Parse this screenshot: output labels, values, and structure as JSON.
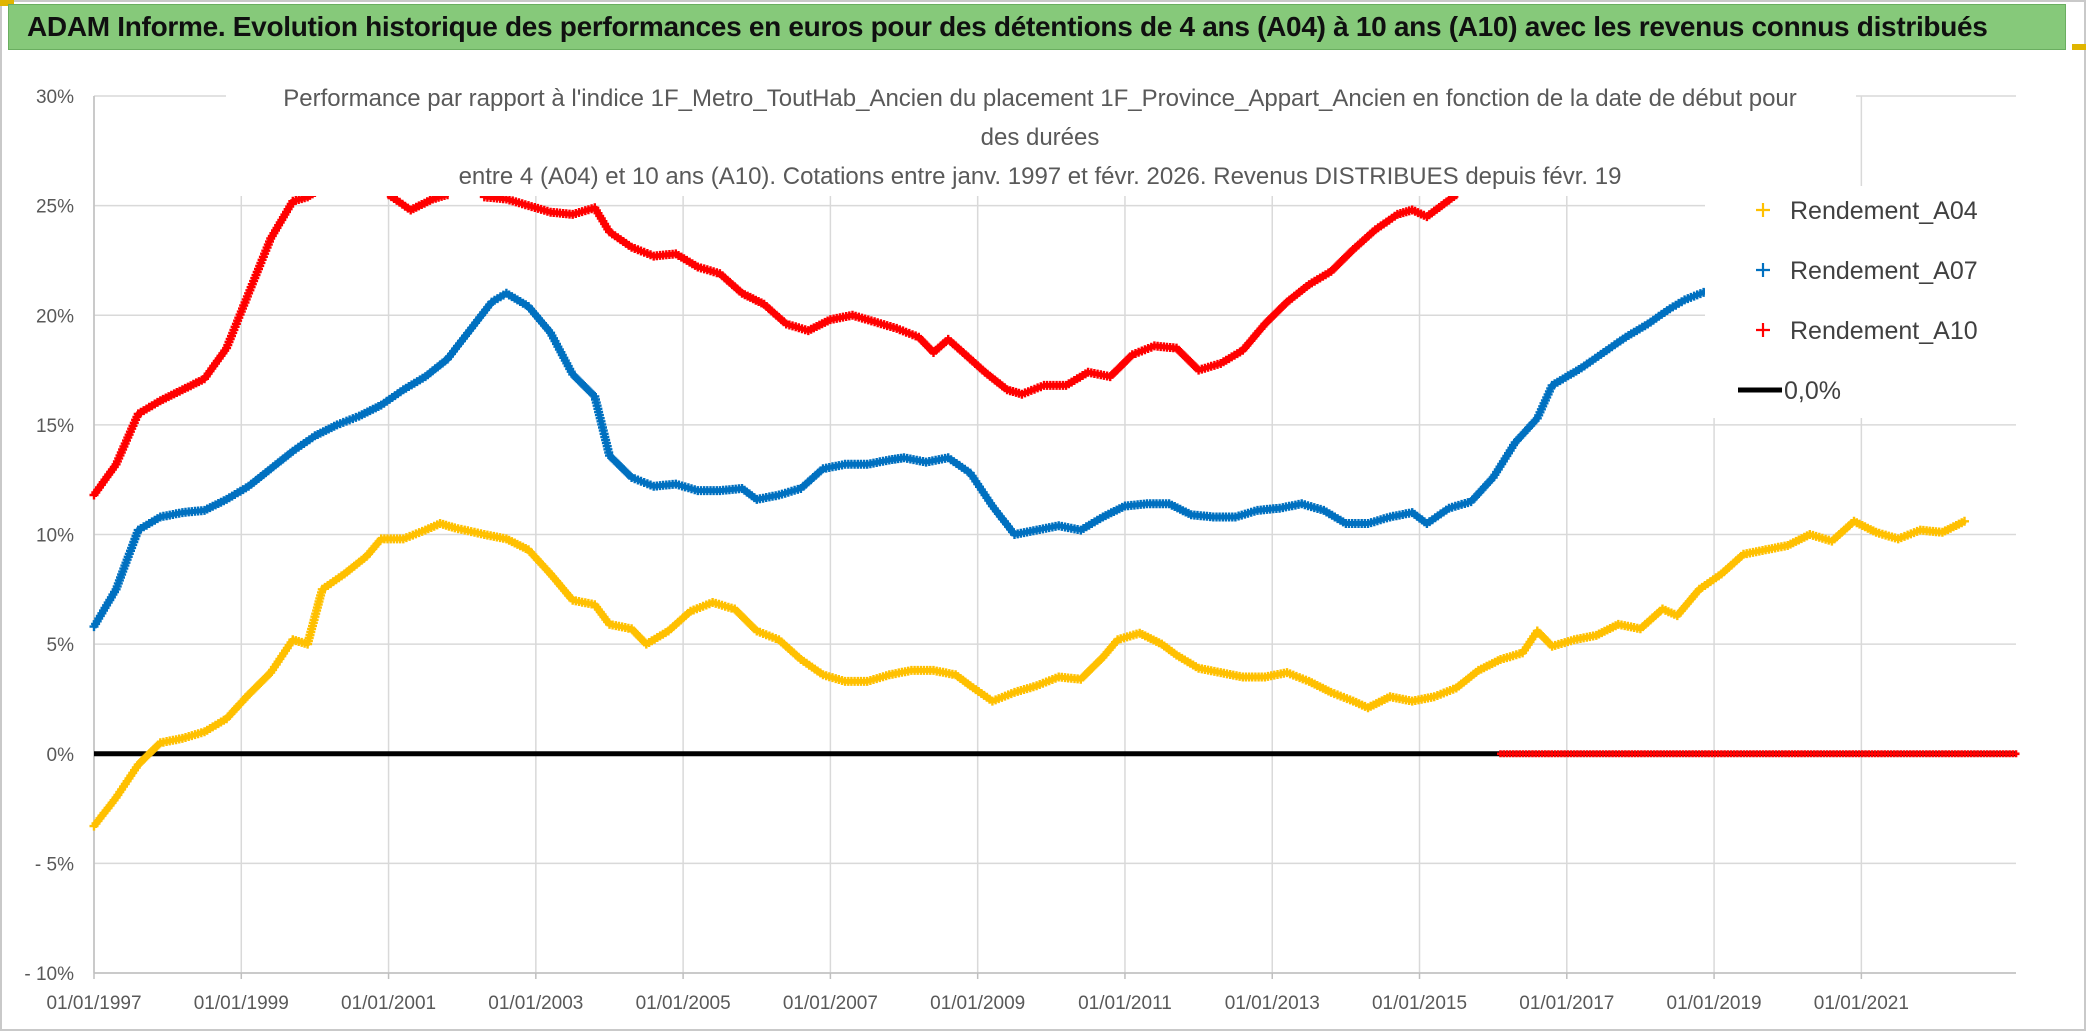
{
  "header": {
    "title": "ADAM Informe. Evolution historique des performances en euros pour des détentions de 4 ans (A04) à 10 ans (A10) avec les revenus connus distribués"
  },
  "chart_data": {
    "type": "line",
    "title_lines": [
      "Performance par rapport à l'indice 1F_Metro_ToutHab_Ancien  du placement 1F_Province_Appart_Ancien en fonction de la date de début pour",
      "des durées",
      "entre 4 (A04) et 10 ans (A10). Cotations entre janv. 1997 et févr. 2026. Revenus DISTRIBUES depuis févr. 19"
    ],
    "y_ticks": [
      "30%",
      "25%",
      "20%",
      "15%",
      "10%",
      "5%",
      "0%",
      "- 5%",
      "- 10%"
    ],
    "ylim": [
      -10,
      30
    ],
    "x_ticks": [
      {
        "label": "01/01/1997",
        "year": 1997
      },
      {
        "label": "01/01/1999",
        "year": 1999
      },
      {
        "label": "01/01/2001",
        "year": 2001
      },
      {
        "label": "01/01/2003",
        "year": 2003
      },
      {
        "label": "01/01/2005",
        "year": 2005
      },
      {
        "label": "01/01/2007",
        "year": 2007
      },
      {
        "label": "01/01/2009",
        "year": 2009
      },
      {
        "label": "01/01/2011",
        "year": 2011
      },
      {
        "label": "01/01/2013",
        "year": 2013
      },
      {
        "label": "01/01/2015",
        "year": 2015
      },
      {
        "label": "01/01/2017",
        "year": 2017
      },
      {
        "label": "01/01/2019",
        "year": 2019
      },
      {
        "label": "01/01/2021",
        "year": 2021
      }
    ],
    "xlim": [
      1997,
      2023.1
    ],
    "grid": true,
    "legend_position": "right",
    "series": [
      {
        "name": "Rendement_A04",
        "color": "#ffc000",
        "points": [
          [
            1997.0,
            -3.3
          ],
          [
            1997.3,
            -2.0
          ],
          [
            1997.6,
            -0.5
          ],
          [
            1997.9,
            0.5
          ],
          [
            1998.2,
            0.7
          ],
          [
            1998.5,
            1.0
          ],
          [
            1998.8,
            1.6
          ],
          [
            1999.1,
            2.7
          ],
          [
            1999.4,
            3.7
          ],
          [
            1999.7,
            5.2
          ],
          [
            1999.9,
            5.0
          ],
          [
            2000.1,
            7.5
          ],
          [
            2000.4,
            8.2
          ],
          [
            2000.7,
            9.0
          ],
          [
            2000.9,
            9.8
          ],
          [
            2001.2,
            9.8
          ],
          [
            2001.5,
            10.2
          ],
          [
            2001.7,
            10.5
          ],
          [
            2001.9,
            10.3
          ],
          [
            2002.3,
            10.0
          ],
          [
            2002.6,
            9.8
          ],
          [
            2002.9,
            9.3
          ],
          [
            2003.2,
            8.2
          ],
          [
            2003.5,
            7.0
          ],
          [
            2003.8,
            6.8
          ],
          [
            2004.0,
            5.9
          ],
          [
            2004.3,
            5.7
          ],
          [
            2004.5,
            5.0
          ],
          [
            2004.8,
            5.6
          ],
          [
            2005.1,
            6.5
          ],
          [
            2005.4,
            6.9
          ],
          [
            2005.7,
            6.6
          ],
          [
            2006.0,
            5.6
          ],
          [
            2006.3,
            5.2
          ],
          [
            2006.6,
            4.3
          ],
          [
            2006.9,
            3.6
          ],
          [
            2007.2,
            3.3
          ],
          [
            2007.5,
            3.3
          ],
          [
            2007.8,
            3.6
          ],
          [
            2008.1,
            3.8
          ],
          [
            2008.4,
            3.8
          ],
          [
            2008.7,
            3.6
          ],
          [
            2008.9,
            3.1
          ],
          [
            2009.2,
            2.4
          ],
          [
            2009.5,
            2.8
          ],
          [
            2009.8,
            3.1
          ],
          [
            2010.1,
            3.5
          ],
          [
            2010.4,
            3.4
          ],
          [
            2010.7,
            4.4
          ],
          [
            2010.9,
            5.2
          ],
          [
            2011.2,
            5.5
          ],
          [
            2011.5,
            5.0
          ],
          [
            2011.7,
            4.5
          ],
          [
            2012.0,
            3.9
          ],
          [
            2012.3,
            3.7
          ],
          [
            2012.6,
            3.5
          ],
          [
            2012.9,
            3.5
          ],
          [
            2013.2,
            3.7
          ],
          [
            2013.5,
            3.3
          ],
          [
            2013.8,
            2.8
          ],
          [
            2014.1,
            2.4
          ],
          [
            2014.3,
            2.1
          ],
          [
            2014.6,
            2.6
          ],
          [
            2014.9,
            2.4
          ],
          [
            2015.2,
            2.6
          ],
          [
            2015.5,
            3.0
          ],
          [
            2015.8,
            3.8
          ],
          [
            2016.1,
            4.3
          ],
          [
            2016.4,
            4.6
          ],
          [
            2016.6,
            5.6
          ],
          [
            2016.8,
            4.9
          ],
          [
            2017.1,
            5.2
          ],
          [
            2017.4,
            5.4
          ],
          [
            2017.7,
            5.9
          ],
          [
            2018.0,
            5.7
          ],
          [
            2018.3,
            6.6
          ],
          [
            2018.5,
            6.3
          ],
          [
            2018.8,
            7.5
          ],
          [
            2019.1,
            8.2
          ],
          [
            2019.4,
            9.1
          ],
          [
            2019.7,
            9.3
          ],
          [
            2020.0,
            9.5
          ],
          [
            2020.3,
            10.0
          ],
          [
            2020.6,
            9.7
          ],
          [
            2020.9,
            10.6
          ],
          [
            2021.2,
            10.1
          ],
          [
            2021.5,
            9.8
          ],
          [
            2021.8,
            10.2
          ],
          [
            2022.1,
            10.1
          ],
          [
            2022.4,
            10.6
          ]
        ]
      },
      {
        "name": "Rendement_A07",
        "color": "#0070c0",
        "points": [
          [
            1997.0,
            5.8
          ],
          [
            1997.3,
            7.5
          ],
          [
            1997.6,
            10.2
          ],
          [
            1997.9,
            10.8
          ],
          [
            1998.2,
            11.0
          ],
          [
            1998.5,
            11.1
          ],
          [
            1998.8,
            11.6
          ],
          [
            1999.1,
            12.2
          ],
          [
            1999.4,
            13.0
          ],
          [
            1999.7,
            13.8
          ],
          [
            2000.0,
            14.5
          ],
          [
            2000.3,
            15.0
          ],
          [
            2000.6,
            15.4
          ],
          [
            2000.9,
            15.9
          ],
          [
            2001.2,
            16.6
          ],
          [
            2001.5,
            17.2
          ],
          [
            2001.8,
            18.0
          ],
          [
            2002.1,
            19.3
          ],
          [
            2002.4,
            20.6
          ],
          [
            2002.6,
            21.0
          ],
          [
            2002.9,
            20.4
          ],
          [
            2003.2,
            19.2
          ],
          [
            2003.5,
            17.3
          ],
          [
            2003.8,
            16.3
          ],
          [
            2004.0,
            13.6
          ],
          [
            2004.3,
            12.6
          ],
          [
            2004.6,
            12.2
          ],
          [
            2004.9,
            12.3
          ],
          [
            2005.2,
            12.0
          ],
          [
            2005.5,
            12.0
          ],
          [
            2005.8,
            12.1
          ],
          [
            2006.0,
            11.6
          ],
          [
            2006.3,
            11.8
          ],
          [
            2006.6,
            12.1
          ],
          [
            2006.9,
            13.0
          ],
          [
            2007.2,
            13.2
          ],
          [
            2007.5,
            13.2
          ],
          [
            2007.8,
            13.4
          ],
          [
            2008.0,
            13.5
          ],
          [
            2008.3,
            13.3
          ],
          [
            2008.6,
            13.5
          ],
          [
            2008.9,
            12.8
          ],
          [
            2009.2,
            11.3
          ],
          [
            2009.5,
            10.0
          ],
          [
            2009.8,
            10.2
          ],
          [
            2010.1,
            10.4
          ],
          [
            2010.4,
            10.2
          ],
          [
            2010.7,
            10.8
          ],
          [
            2011.0,
            11.3
          ],
          [
            2011.3,
            11.4
          ],
          [
            2011.6,
            11.4
          ],
          [
            2011.9,
            10.9
          ],
          [
            2012.2,
            10.8
          ],
          [
            2012.5,
            10.8
          ],
          [
            2012.8,
            11.1
          ],
          [
            2013.1,
            11.2
          ],
          [
            2013.4,
            11.4
          ],
          [
            2013.7,
            11.1
          ],
          [
            2014.0,
            10.5
          ],
          [
            2014.3,
            10.5
          ],
          [
            2014.6,
            10.8
          ],
          [
            2014.9,
            11.0
          ],
          [
            2015.1,
            10.5
          ],
          [
            2015.4,
            11.2
          ],
          [
            2015.7,
            11.5
          ],
          [
            2016.0,
            12.6
          ],
          [
            2016.3,
            14.2
          ],
          [
            2016.6,
            15.3
          ],
          [
            2016.8,
            16.8
          ],
          [
            2017.2,
            17.6
          ],
          [
            2017.5,
            18.3
          ],
          [
            2017.8,
            19.0
          ],
          [
            2018.1,
            19.6
          ],
          [
            2018.4,
            20.3
          ],
          [
            2018.6,
            20.7
          ],
          [
            2018.9,
            21.1
          ],
          [
            2019.0,
            21.3
          ]
        ]
      },
      {
        "name": "Rendement_A10",
        "color": "#ff0000",
        "points": [
          [
            1997.0,
            11.8
          ],
          [
            1997.3,
            13.2
          ],
          [
            1997.6,
            15.5
          ],
          [
            1997.9,
            16.1
          ],
          [
            1998.2,
            16.6
          ],
          [
            1998.5,
            17.1
          ],
          [
            1998.8,
            18.5
          ],
          [
            1999.1,
            21.0
          ],
          [
            1999.4,
            23.5
          ],
          [
            1999.7,
            25.2
          ],
          [
            1999.9,
            25.4
          ],
          [
            2000.0,
            25.6
          ],
          null,
          [
            2001.0,
            25.5
          ],
          [
            2001.3,
            24.8
          ],
          [
            2001.6,
            25.3
          ],
          [
            2001.8,
            25.5
          ],
          null,
          [
            2002.3,
            25.4
          ],
          [
            2002.6,
            25.3
          ],
          [
            2002.9,
            25.0
          ],
          [
            2003.2,
            24.7
          ],
          [
            2003.5,
            24.6
          ],
          [
            2003.8,
            24.9
          ],
          [
            2004.0,
            23.8
          ],
          [
            2004.3,
            23.1
          ],
          [
            2004.6,
            22.7
          ],
          [
            2004.9,
            22.8
          ],
          [
            2005.2,
            22.2
          ],
          [
            2005.5,
            21.9
          ],
          [
            2005.8,
            21.0
          ],
          [
            2006.1,
            20.5
          ],
          [
            2006.4,
            19.6
          ],
          [
            2006.7,
            19.3
          ],
          [
            2007.0,
            19.8
          ],
          [
            2007.3,
            20.0
          ],
          [
            2007.6,
            19.7
          ],
          [
            2007.9,
            19.4
          ],
          [
            2008.2,
            19.0
          ],
          [
            2008.4,
            18.3
          ],
          [
            2008.6,
            18.9
          ],
          [
            2008.9,
            18.0
          ],
          [
            2009.1,
            17.4
          ],
          [
            2009.4,
            16.6
          ],
          [
            2009.6,
            16.4
          ],
          [
            2009.9,
            16.8
          ],
          [
            2010.2,
            16.8
          ],
          [
            2010.5,
            17.4
          ],
          [
            2010.8,
            17.2
          ],
          [
            2011.1,
            18.2
          ],
          [
            2011.4,
            18.6
          ],
          [
            2011.7,
            18.5
          ],
          [
            2012.0,
            17.5
          ],
          [
            2012.3,
            17.8
          ],
          [
            2012.6,
            18.4
          ],
          [
            2012.9,
            19.6
          ],
          [
            2013.2,
            20.6
          ],
          [
            2013.5,
            21.4
          ],
          [
            2013.8,
            22.0
          ],
          [
            2014.1,
            23.0
          ],
          [
            2014.4,
            23.9
          ],
          [
            2014.7,
            24.6
          ],
          [
            2014.9,
            24.8
          ],
          [
            2015.1,
            24.5
          ],
          [
            2015.3,
            25.0
          ],
          [
            2015.5,
            25.5
          ]
        ]
      },
      {
        "name": "0,0%",
        "color": "#000000",
        "points": [
          [
            1997.0,
            0
          ],
          [
            2023.1,
            0
          ]
        ]
      }
    ],
    "a10_zero_markers": {
      "from": 2016.1,
      "to": 2023.1
    }
  }
}
